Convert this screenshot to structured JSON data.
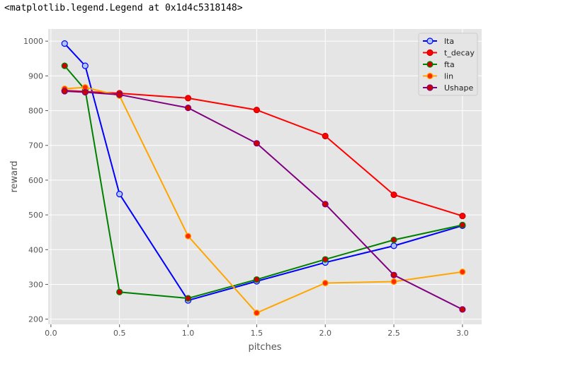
{
  "output_text": "<matplotlib.legend.Legend at 0x1d4c5318148>",
  "chart_data": {
    "type": "line",
    "title": "",
    "xlabel": "pitches",
    "ylabel": "reward",
    "xlim": [
      -0.02,
      3.14
    ],
    "ylim": [
      185,
      1035
    ],
    "x_ticks": [
      "0.0",
      "0.5",
      "1.0",
      "1.5",
      "2.0",
      "2.5",
      "3.0"
    ],
    "y_ticks": [
      "200",
      "300",
      "400",
      "500",
      "600",
      "700",
      "800",
      "900",
      "1000"
    ],
    "grid": true,
    "legend_position": "top-right",
    "series": [
      {
        "name": "lta",
        "color": "#0000ff",
        "marker_face": "#aec7f7",
        "marker_edge": "#0000ff",
        "x": [
          0.1,
          0.25,
          0.5,
          1.0,
          1.5,
          2.0,
          2.5,
          3.0
        ],
        "y": [
          993,
          929,
          560,
          254,
          309,
          363,
          411,
          469
        ]
      },
      {
        "name": "t_decay",
        "color": "#ff0000",
        "marker_face": "#ff0000",
        "marker_edge": "#cc0000",
        "x": [
          0.1,
          0.25,
          0.5,
          1.0,
          1.5,
          2.0,
          2.5,
          3.0
        ],
        "y": [
          858,
          855,
          850,
          836,
          802,
          727,
          558,
          497
        ]
      },
      {
        "name": "fta",
        "color": "#008000",
        "marker_face": "#cc0000",
        "marker_edge": "#008000",
        "x": [
          0.1,
          0.25,
          0.5,
          1.0,
          1.5,
          2.0,
          2.5,
          3.0
        ],
        "y": [
          929,
          860,
          278,
          260,
          314,
          372,
          428,
          471
        ]
      },
      {
        "name": "lin",
        "color": "#ffa500",
        "marker_face": "#ff2a00",
        "marker_edge": "#ffa500",
        "x": [
          0.1,
          0.25,
          0.5,
          1.0,
          1.5,
          2.0,
          2.5,
          3.0
        ],
        "y": [
          863,
          867,
          843,
          439,
          218,
          304,
          308,
          336
        ]
      },
      {
        "name": "Ushape",
        "color": "#800080",
        "marker_face": "#cc0000",
        "marker_edge": "#800080",
        "x": [
          0.1,
          0.25,
          0.5,
          1.0,
          1.5,
          2.0,
          2.5,
          3.0
        ],
        "y": [
          856,
          853,
          846,
          808,
          706,
          531,
          327,
          228
        ]
      }
    ]
  }
}
